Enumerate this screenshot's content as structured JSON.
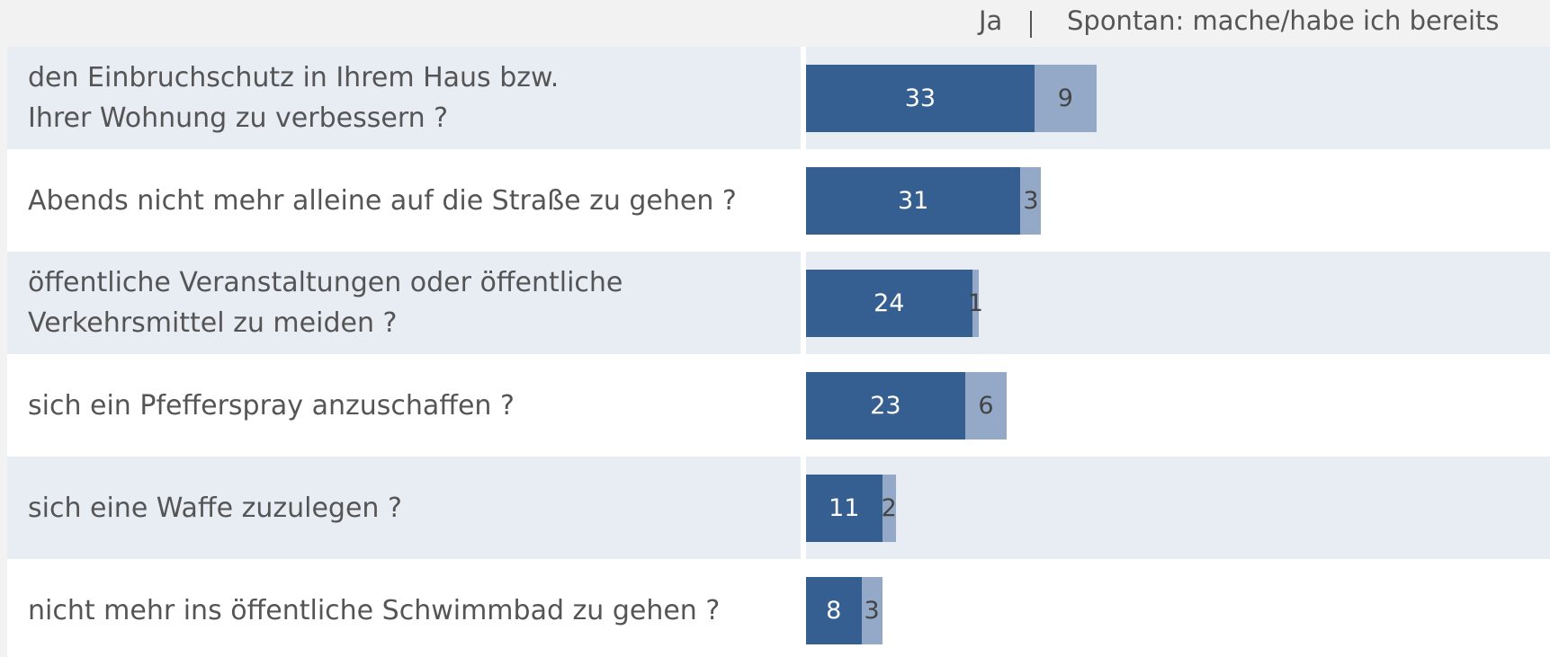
{
  "chart_data": {
    "type": "bar",
    "orientation": "horizontal",
    "stacked": true,
    "categories": [
      "den Einbruchschutz in Ihrem Haus bzw.\nIhrer Wohnung zu verbessern ?",
      "Abends nicht mehr alleine auf die Straße zu gehen ?",
      "öffentliche Veranstaltungen oder öffentliche\nVerkehrsmittel zu meiden ?",
      "sich ein Pfefferspray anzuschaffen ?",
      "sich eine Waffe zuzulegen ?",
      "nicht mehr ins öffentliche Schwimmbad zu gehen ?"
    ],
    "series": [
      {
        "name": "Ja",
        "color": "#355f91",
        "values": [
          33,
          31,
          24,
          23,
          11,
          8
        ]
      },
      {
        "name": "Spontan: mache/habe ich bereits",
        "color": "#94a9c7",
        "values": [
          9,
          3,
          1,
          6,
          2,
          3
        ]
      }
    ]
  }
}
